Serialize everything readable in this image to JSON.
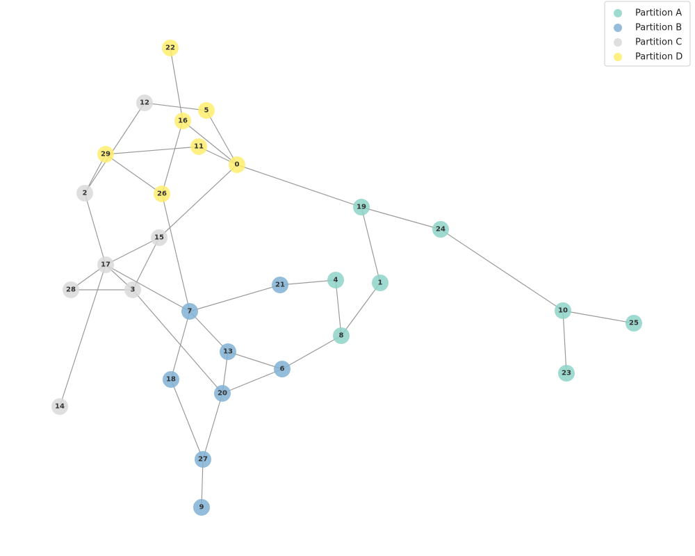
{
  "legend": [
    {
      "name": "Partition A",
      "color": "#8dd3c7"
    },
    {
      "name": "Partition B",
      "color": "#80b1d3"
    },
    {
      "name": "Partition C",
      "color": "#d9d9d9"
    },
    {
      "name": "Partition D",
      "color": "#ffed6f"
    }
  ],
  "nodes": [
    {
      "label": "0",
      "partition": 3
    },
    {
      "label": "1",
      "partition": 0
    },
    {
      "label": "2",
      "partition": 2
    },
    {
      "label": "3",
      "partition": 2
    },
    {
      "label": "4",
      "partition": 0
    },
    {
      "label": "5",
      "partition": 3
    },
    {
      "label": "6",
      "partition": 1
    },
    {
      "label": "7",
      "partition": 1
    },
    {
      "label": "8",
      "partition": 0
    },
    {
      "label": "9",
      "partition": 1
    },
    {
      "label": "10",
      "partition": 0
    },
    {
      "label": "11",
      "partition": 3
    },
    {
      "label": "12",
      "partition": 2
    },
    {
      "label": "13",
      "partition": 1
    },
    {
      "label": "14",
      "partition": 2
    },
    {
      "label": "15",
      "partition": 2
    },
    {
      "label": "16",
      "partition": 3
    },
    {
      "label": "17",
      "partition": 2
    },
    {
      "label": "18",
      "partition": 1
    },
    {
      "label": "19",
      "partition": 0
    },
    {
      "label": "20",
      "partition": 1
    },
    {
      "label": "21",
      "partition": 1
    },
    {
      "label": "22",
      "partition": 3
    },
    {
      "label": "23",
      "partition": 0
    },
    {
      "label": "24",
      "partition": 0
    },
    {
      "label": "25",
      "partition": 0
    },
    {
      "label": "26",
      "partition": 3
    },
    {
      "label": "27",
      "partition": 1
    },
    {
      "label": "28",
      "partition": 2
    },
    {
      "label": "29",
      "partition": 3
    }
  ],
  "edges": [
    [
      22,
      16
    ],
    [
      12,
      5
    ],
    [
      12,
      2
    ],
    [
      29,
      2
    ],
    [
      16,
      0
    ],
    [
      5,
      0
    ],
    [
      11,
      0
    ],
    [
      29,
      11
    ],
    [
      29,
      26
    ],
    [
      16,
      26
    ],
    [
      0,
      19
    ],
    [
      0,
      15
    ],
    [
      19,
      24
    ],
    [
      19,
      1
    ],
    [
      24,
      10
    ],
    [
      10,
      25
    ],
    [
      10,
      23
    ],
    [
      1,
      8
    ],
    [
      4,
      8
    ],
    [
      4,
      21
    ],
    [
      21,
      7
    ],
    [
      8,
      6
    ],
    [
      6,
      13
    ],
    [
      6,
      20
    ],
    [
      13,
      7
    ],
    [
      13,
      20
    ],
    [
      7,
      18
    ],
    [
      7,
      17
    ],
    [
      26,
      7
    ],
    [
      15,
      17
    ],
    [
      15,
      3
    ],
    [
      17,
      28
    ],
    [
      17,
      3
    ],
    [
      28,
      3
    ],
    [
      17,
      14
    ],
    [
      2,
      17
    ],
    [
      3,
      20
    ],
    [
      18,
      27
    ],
    [
      20,
      27
    ],
    [
      27,
      9
    ]
  ]
}
